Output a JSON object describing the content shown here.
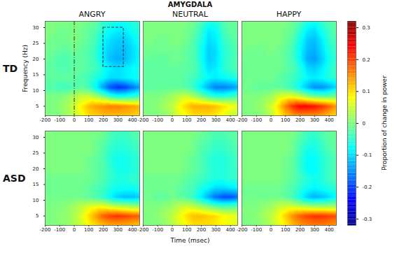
{
  "chart_data": {
    "type": "heatmap",
    "title": "AMYGDALA",
    "xlabel": "Time (msec)",
    "ylabel": "Frequency (Hz)",
    "xlim": [
      -200,
      450
    ],
    "xticks": [
      -200,
      -100,
      0,
      100,
      200,
      300,
      400
    ],
    "ylim": [
      2,
      32
    ],
    "yticks": [
      5,
      10,
      15,
      20,
      25,
      30
    ],
    "columns": [
      "ANGRY",
      "NEUTRAL",
      "HAPPY"
    ],
    "rows": [
      "TD",
      "ASD"
    ],
    "time": [
      -200,
      -150,
      -100,
      -50,
      0,
      50,
      100,
      150,
      200,
      250,
      300,
      350,
      400,
      450
    ],
    "frequency": [
      2,
      5,
      8,
      11,
      14,
      17,
      20,
      23,
      26,
      29,
      32
    ],
    "colorbar": {
      "label": "Proportion of change in power",
      "range": [
        -0.32,
        0.32
      ],
      "ticks": [
        -0.3,
        -0.2,
        -0.1,
        0,
        0.1,
        0.2,
        0.3
      ]
    },
    "panels": [
      {
        "row": "TD",
        "column": "ANGRY",
        "vline": 0,
        "box": {
          "x": [
            200,
            340
          ],
          "y": [
            17.5,
            30
          ]
        },
        "power": [
          [
            0,
            0,
            0,
            0.02,
            0.04,
            0.07,
            0.1,
            0.11,
            0.12,
            0.12,
            0.12,
            0.12,
            0.11,
            0.1
          ],
          [
            0,
            0,
            0.01,
            0.02,
            0.05,
            0.09,
            0.12,
            0.14,
            0.15,
            0.16,
            0.16,
            0.15,
            0.14,
            0.13
          ],
          [
            0,
            0,
            0,
            0.01,
            0.03,
            0.05,
            0.05,
            0.03,
            0,
            -0.04,
            -0.06,
            -0.06,
            -0.05,
            -0.04
          ],
          [
            -0.03,
            -0.03,
            -0.04,
            -0.04,
            -0.03,
            -0.02,
            -0.04,
            -0.08,
            -0.14,
            -0.19,
            -0.21,
            -0.2,
            -0.17,
            -0.14
          ],
          [
            -0.02,
            -0.02,
            -0.02,
            -0.02,
            -0.02,
            -0.03,
            -0.04,
            -0.06,
            -0.08,
            -0.1,
            -0.1,
            -0.09,
            -0.08,
            -0.07
          ],
          [
            -0.02,
            -0.02,
            -0.03,
            -0.03,
            -0.02,
            -0.02,
            -0.03,
            -0.04,
            -0.07,
            -0.09,
            -0.1,
            -0.09,
            -0.08,
            -0.07
          ],
          [
            -0.01,
            -0.02,
            -0.03,
            -0.03,
            -0.02,
            -0.02,
            -0.03,
            -0.05,
            -0.09,
            -0.12,
            -0.13,
            -0.12,
            -0.1,
            -0.08
          ],
          [
            -0.01,
            -0.01,
            -0.02,
            -0.02,
            -0.01,
            -0.02,
            -0.03,
            -0.05,
            -0.09,
            -0.11,
            -0.12,
            -0.12,
            -0.1,
            -0.08
          ],
          [
            0,
            -0.01,
            -0.01,
            -0.01,
            0,
            -0.01,
            -0.02,
            -0.04,
            -0.08,
            -0.1,
            -0.11,
            -0.11,
            -0.09,
            -0.07
          ],
          [
            0,
            0,
            -0.01,
            -0.01,
            0,
            -0.01,
            -0.02,
            -0.03,
            -0.06,
            -0.08,
            -0.09,
            -0.09,
            -0.07,
            -0.06
          ],
          [
            0,
            0,
            0,
            0,
            0,
            0,
            -0.01,
            -0.02,
            -0.05,
            -0.06,
            -0.07,
            -0.07,
            -0.06,
            -0.05
          ]
        ]
      },
      {
        "row": "TD",
        "column": "NEUTRAL",
        "power": [
          [
            0,
            0,
            0,
            0.01,
            0.03,
            0.06,
            0.08,
            0.1,
            0.1,
            0.1,
            0.09,
            0.07,
            0.05,
            0.04
          ],
          [
            0,
            0,
            0.01,
            0.02,
            0.04,
            0.08,
            0.11,
            0.13,
            0.13,
            0.13,
            0.12,
            0.1,
            0.08,
            0.06
          ],
          [
            0,
            0,
            0,
            0.01,
            0.02,
            0.04,
            0.05,
            0.03,
            0,
            -0.03,
            -0.05,
            -0.05,
            -0.04,
            -0.03
          ],
          [
            -0.02,
            -0.02,
            -0.02,
            -0.02,
            -0.02,
            -0.02,
            -0.03,
            -0.05,
            -0.09,
            -0.13,
            -0.16,
            -0.16,
            -0.15,
            -0.13
          ],
          [
            -0.02,
            -0.02,
            -0.02,
            -0.02,
            -0.02,
            -0.02,
            -0.03,
            -0.04,
            -0.06,
            -0.08,
            -0.09,
            -0.08,
            -0.07,
            -0.06
          ],
          [
            -0.02,
            -0.02,
            -0.02,
            -0.02,
            -0.02,
            -0.02,
            -0.02,
            -0.03,
            -0.06,
            -0.1,
            -0.09,
            -0.06,
            -0.04,
            -0.03
          ],
          [
            -0.01,
            -0.02,
            -0.02,
            -0.02,
            -0.01,
            -0.01,
            -0.02,
            -0.03,
            -0.07,
            -0.11,
            -0.1,
            -0.06,
            -0.04,
            -0.03
          ],
          [
            -0.01,
            -0.01,
            -0.01,
            -0.01,
            -0.01,
            -0.01,
            -0.02,
            -0.03,
            -0.07,
            -0.11,
            -0.1,
            -0.06,
            -0.04,
            -0.03
          ],
          [
            0,
            0,
            -0.01,
            -0.01,
            0,
            0,
            -0.01,
            -0.03,
            -0.06,
            -0.1,
            -0.09,
            -0.05,
            -0.03,
            -0.02
          ],
          [
            0,
            0,
            0,
            0,
            0,
            0,
            -0.01,
            -0.02,
            -0.05,
            -0.09,
            -0.08,
            -0.04,
            -0.02,
            -0.02
          ],
          [
            0,
            0,
            0,
            0,
            0,
            0,
            0,
            -0.01,
            -0.03,
            -0.06,
            -0.06,
            -0.03,
            -0.02,
            -0.01
          ]
        ]
      },
      {
        "row": "TD",
        "column": "HAPPY",
        "power": [
          [
            0,
            0,
            0,
            0.01,
            0.04,
            0.08,
            0.12,
            0.14,
            0.15,
            0.15,
            0.15,
            0.14,
            0.12,
            0.1
          ],
          [
            0,
            0,
            0.01,
            0.02,
            0.05,
            0.1,
            0.16,
            0.21,
            0.24,
            0.24,
            0.23,
            0.21,
            0.18,
            0.14
          ],
          [
            0,
            0,
            0,
            0.01,
            0.02,
            0.05,
            0.07,
            0.07,
            0.05,
            0.02,
            0,
            -0.01,
            -0.01,
            0
          ],
          [
            -0.01,
            -0.01,
            -0.02,
            -0.02,
            -0.02,
            -0.02,
            -0.03,
            -0.05,
            -0.08,
            -0.12,
            -0.15,
            -0.15,
            -0.13,
            -0.1
          ],
          [
            -0.01,
            -0.01,
            -0.01,
            -0.01,
            -0.01,
            -0.02,
            -0.03,
            -0.04,
            -0.06,
            -0.08,
            -0.09,
            -0.08,
            -0.06,
            -0.05
          ],
          [
            -0.01,
            -0.01,
            -0.01,
            -0.01,
            -0.01,
            -0.01,
            -0.02,
            -0.03,
            -0.06,
            -0.1,
            -0.11,
            -0.09,
            -0.06,
            -0.04
          ],
          [
            -0.01,
            -0.01,
            -0.01,
            -0.01,
            -0.01,
            -0.01,
            -0.02,
            -0.04,
            -0.08,
            -0.13,
            -0.14,
            -0.11,
            -0.07,
            -0.05
          ],
          [
            0,
            -0.01,
            -0.01,
            -0.01,
            0,
            -0.01,
            -0.02,
            -0.04,
            -0.08,
            -0.12,
            -0.13,
            -0.1,
            -0.06,
            -0.04
          ],
          [
            0,
            0,
            0,
            0,
            0,
            0,
            -0.01,
            -0.03,
            -0.07,
            -0.11,
            -0.12,
            -0.09,
            -0.05,
            -0.03
          ],
          [
            0,
            0,
            0,
            0,
            0,
            0,
            -0.01,
            -0.02,
            -0.05,
            -0.09,
            -0.1,
            -0.07,
            -0.04,
            -0.02
          ],
          [
            0,
            0,
            0,
            0,
            0,
            0,
            0,
            -0.01,
            -0.03,
            -0.06,
            -0.07,
            -0.05,
            -0.03,
            -0.02
          ]
        ]
      },
      {
        "row": "ASD",
        "column": "ANGRY",
        "power": [
          [
            0,
            0,
            0,
            0.01,
            0.03,
            0.05,
            0.08,
            0.1,
            0.12,
            0.13,
            0.13,
            0.13,
            0.12,
            0.11
          ],
          [
            0,
            0,
            0.01,
            0.01,
            0.03,
            0.06,
            0.1,
            0.14,
            0.18,
            0.2,
            0.21,
            0.2,
            0.19,
            0.18
          ],
          [
            0,
            0,
            0,
            0.01,
            0.02,
            0.04,
            0.06,
            0.07,
            0.07,
            0.05,
            0.04,
            0.03,
            0.02,
            0.02
          ],
          [
            -0.01,
            -0.01,
            -0.01,
            -0.01,
            -0.01,
            -0.01,
            -0.02,
            -0.03,
            -0.05,
            -0.08,
            -0.11,
            -0.12,
            -0.12,
            -0.11
          ],
          [
            -0.01,
            -0.01,
            -0.01,
            -0.01,
            -0.01,
            -0.01,
            -0.02,
            -0.03,
            -0.04,
            -0.06,
            -0.07,
            -0.07,
            -0.07,
            -0.06
          ],
          [
            -0.01,
            -0.01,
            -0.01,
            -0.01,
            -0.01,
            -0.01,
            -0.01,
            -0.02,
            -0.03,
            -0.05,
            -0.06,
            -0.06,
            -0.05,
            -0.05
          ],
          [
            0,
            0,
            0,
            0,
            0,
            0,
            -0.01,
            -0.02,
            -0.03,
            -0.05,
            -0.07,
            -0.07,
            -0.06,
            -0.05
          ],
          [
            0,
            0,
            0,
            0,
            0,
            0,
            -0.01,
            -0.02,
            -0.03,
            -0.06,
            -0.07,
            -0.07,
            -0.06,
            -0.05
          ],
          [
            0,
            0,
            0,
            0,
            0,
            0,
            0,
            -0.01,
            -0.03,
            -0.05,
            -0.06,
            -0.06,
            -0.05,
            -0.04
          ],
          [
            0,
            0,
            0,
            0,
            0,
            0,
            0,
            -0.01,
            -0.02,
            -0.04,
            -0.05,
            -0.05,
            -0.04,
            -0.03
          ],
          [
            0,
            0,
            0,
            0,
            0,
            0,
            0,
            0,
            -0.01,
            -0.03,
            -0.04,
            -0.04,
            -0.03,
            -0.02
          ]
        ]
      },
      {
        "row": "ASD",
        "column": "NEUTRAL",
        "power": [
          [
            0,
            0,
            0,
            0.01,
            0.03,
            0.06,
            0.08,
            0.1,
            0.1,
            0.1,
            0.09,
            0.08,
            0.07,
            0.06
          ],
          [
            0,
            0,
            0.01,
            0.02,
            0.04,
            0.07,
            0.1,
            0.12,
            0.12,
            0.11,
            0.1,
            0.08,
            0.07,
            0.06
          ],
          [
            0,
            0,
            0,
            0.01,
            0.02,
            0.04,
            0.05,
            0.04,
            0.02,
            0,
            -0.02,
            -0.03,
            -0.03,
            -0.02
          ],
          [
            -0.01,
            -0.01,
            -0.02,
            -0.02,
            -0.01,
            -0.02,
            -0.03,
            -0.05,
            -0.09,
            -0.13,
            -0.17,
            -0.19,
            -0.19,
            -0.17
          ],
          [
            -0.01,
            -0.01,
            -0.01,
            -0.01,
            -0.01,
            -0.02,
            -0.03,
            -0.04,
            -0.06,
            -0.08,
            -0.1,
            -0.1,
            -0.09,
            -0.08
          ],
          [
            -0.01,
            -0.01,
            -0.01,
            -0.01,
            -0.01,
            -0.01,
            -0.02,
            -0.03,
            -0.04,
            -0.05,
            -0.06,
            -0.06,
            -0.05,
            -0.05
          ],
          [
            0,
            0,
            0,
            0,
            0,
            0,
            -0.01,
            -0.02,
            -0.03,
            -0.05,
            -0.06,
            -0.06,
            -0.05,
            -0.04
          ],
          [
            0,
            0,
            0,
            0,
            0,
            0,
            -0.01,
            -0.02,
            -0.03,
            -0.05,
            -0.06,
            -0.06,
            -0.05,
            -0.04
          ],
          [
            0,
            0,
            0,
            0,
            0,
            0,
            0,
            -0.01,
            -0.03,
            -0.04,
            -0.05,
            -0.05,
            -0.04,
            -0.03
          ],
          [
            0,
            0,
            0,
            0,
            0,
            0,
            0,
            -0.01,
            -0.02,
            -0.03,
            -0.04,
            -0.04,
            -0.03,
            -0.02
          ],
          [
            0,
            0,
            0,
            0,
            0,
            0,
            0,
            0,
            -0.01,
            -0.02,
            -0.03,
            -0.03,
            -0.02,
            -0.02
          ]
        ]
      },
      {
        "row": "ASD",
        "column": "HAPPY",
        "power": [
          [
            0,
            0,
            0,
            0.01,
            0.03,
            0.06,
            0.09,
            0.12,
            0.14,
            0.15,
            0.16,
            0.16,
            0.15,
            0.14
          ],
          [
            0,
            0,
            0.01,
            0.02,
            0.04,
            0.07,
            0.11,
            0.15,
            0.18,
            0.2,
            0.21,
            0.21,
            0.2,
            0.19
          ],
          [
            0,
            0,
            0,
            0.01,
            0.02,
            0.04,
            0.05,
            0.05,
            0.04,
            0.03,
            0.02,
            0.02,
            0.02,
            0.02
          ],
          [
            -0.01,
            -0.01,
            -0.01,
            -0.01,
            -0.01,
            -0.01,
            -0.02,
            -0.04,
            -0.07,
            -0.11,
            -0.13,
            -0.12,
            -0.1,
            -0.08
          ],
          [
            -0.01,
            -0.01,
            -0.01,
            -0.01,
            -0.01,
            -0.01,
            -0.02,
            -0.03,
            -0.05,
            -0.07,
            -0.08,
            -0.07,
            -0.06,
            -0.05
          ],
          [
            0,
            0,
            0,
            0,
            0,
            0,
            -0.01,
            -0.02,
            -0.04,
            -0.06,
            -0.07,
            -0.06,
            -0.04,
            -0.03
          ],
          [
            0,
            0,
            0,
            0,
            0,
            0,
            -0.01,
            -0.02,
            -0.05,
            -0.08,
            -0.08,
            -0.06,
            -0.04,
            -0.03
          ],
          [
            0,
            0,
            0,
            0,
            0,
            0,
            -0.01,
            -0.02,
            -0.05,
            -0.08,
            -0.08,
            -0.06,
            -0.04,
            -0.03
          ],
          [
            0,
            0,
            0,
            0,
            0,
            0,
            0,
            -0.01,
            -0.04,
            -0.07,
            -0.07,
            -0.05,
            -0.03,
            -0.02
          ],
          [
            0,
            0,
            0,
            0,
            0,
            0,
            0,
            -0.01,
            -0.03,
            -0.05,
            -0.06,
            -0.04,
            -0.02,
            -0.02
          ],
          [
            0,
            0,
            0,
            0,
            0,
            0,
            0,
            0,
            -0.02,
            -0.04,
            -0.04,
            -0.03,
            -0.02,
            -0.01
          ]
        ]
      }
    ]
  }
}
